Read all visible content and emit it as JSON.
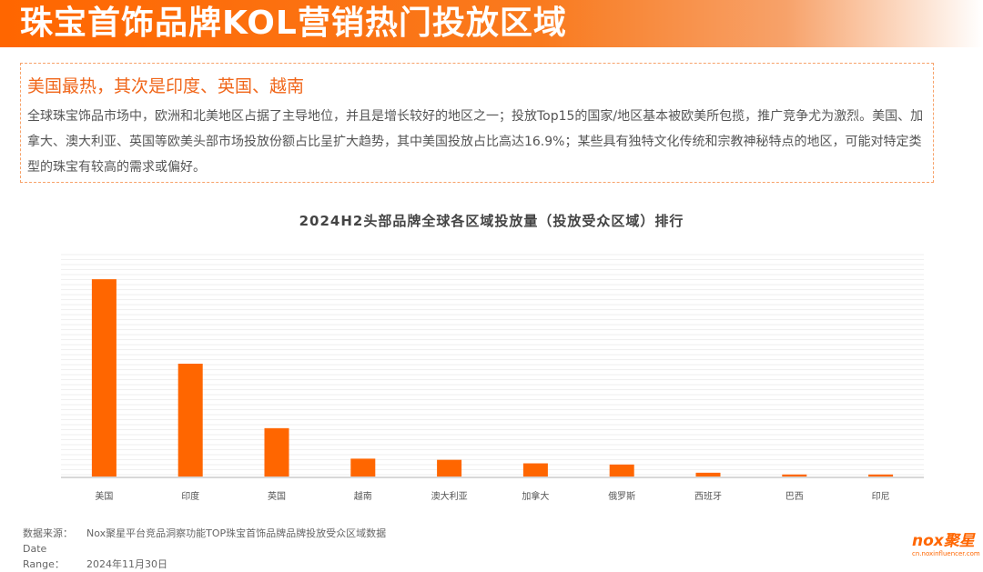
{
  "header": {
    "title": "珠宝首饰品牌KOL营销热门投放区域"
  },
  "summary": {
    "headline": "美国最热，其次是印度、英国、越南",
    "body": "全球珠宝饰品市场中，欧洲和北美地区占据了主导地位，并且是增长较好的地区之一；投放Top15的国家/地区基本被欧美所包揽，推广竞争尤为激烈。美国、加拿大、澳大利亚、英国等欧美头部市场投放份额占比呈扩大趋势，其中美国投放占比高达16.9%；某些具有独特文化传统和宗教神秘特点的地区，可能对特定类型的珠宝有较高的需求或偏好。"
  },
  "chart_data": {
    "type": "bar",
    "title": "2024H2头部品牌全球各区域投放量（投放受众区域）排行",
    "categories": [
      "美国",
      "印度",
      "英国",
      "越南",
      "澳大利亚",
      "加拿大",
      "俄罗斯",
      "西班牙",
      "巴西",
      "印尼"
    ],
    "values": [
      16.9,
      9.7,
      4.2,
      1.6,
      1.5,
      1.2,
      1.1,
      0.4,
      0.25,
      0.25
    ],
    "xlabel": "",
    "ylabel": "",
    "ylim": [
      0,
      19
    ],
    "grid": true,
    "bar_color": "#ff6600"
  },
  "footer": {
    "source_label": "数据来源：",
    "source_value": "Nox聚星平台竞品洞察功能TOP珠宝首饰品牌品牌投放受众区域数据",
    "date_label": "Date Range：",
    "date_value": "2024年11月30日"
  },
  "logo": {
    "text": "nox聚星",
    "url": "cn.noxinfluencer.com"
  }
}
